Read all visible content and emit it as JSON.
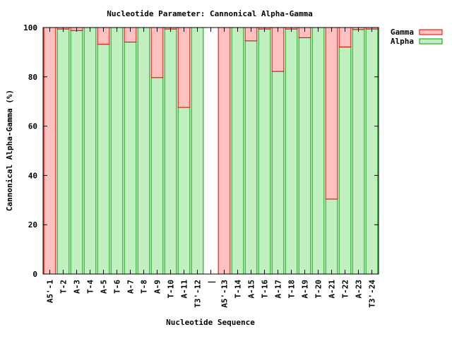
{
  "chart_data": {
    "type": "bar",
    "stacked": true,
    "title": "Nucleotide Parameter: Cannonical Alpha-Gamma",
    "xlabel": "Nucleotide Sequence",
    "ylabel": "Cannonical Alpha-Gamma (%)",
    "ylim": [
      0,
      100
    ],
    "yticks": [
      0,
      20,
      40,
      60,
      80,
      100
    ],
    "grid": false,
    "legend_position": "top-right, outside plot",
    "categories": [
      "A5'-1",
      "T-2",
      "A-3",
      "T-4",
      "A-5",
      "T-6",
      "A-7",
      "T-8",
      "A-9",
      "T-10",
      "A-11",
      "T3'-12",
      "|",
      "A5'-13",
      "T-14",
      "A-15",
      "T-16",
      "A-17",
      "T-18",
      "A-19",
      "T-20",
      "A-21",
      "T-22",
      "A-23",
      "T3'-24"
    ],
    "series": [
      {
        "name": "Alpha",
        "fill": "#c0f0c0",
        "stroke": "#00a000",
        "values": [
          0,
          99.4,
          98.8,
          100,
          93.2,
          100,
          94.1,
          100,
          79.7,
          99.4,
          67.6,
          100,
          null,
          0,
          100,
          94.6,
          99.4,
          82.2,
          99.4,
          95.9,
          100,
          30.4,
          92.1,
          99.2,
          99.4
        ]
      },
      {
        "name": "Gamma",
        "fill": "#ffc0c0",
        "stroke": "#e00000",
        "values": [
          100,
          0.6,
          1.2,
          0,
          6.8,
          0,
          5.9,
          0,
          20.3,
          0.6,
          32.4,
          0,
          null,
          100,
          0,
          5.4,
          0.6,
          17.8,
          0.6,
          4.1,
          0,
          69.6,
          7.9,
          0.8,
          0.6
        ]
      }
    ]
  }
}
